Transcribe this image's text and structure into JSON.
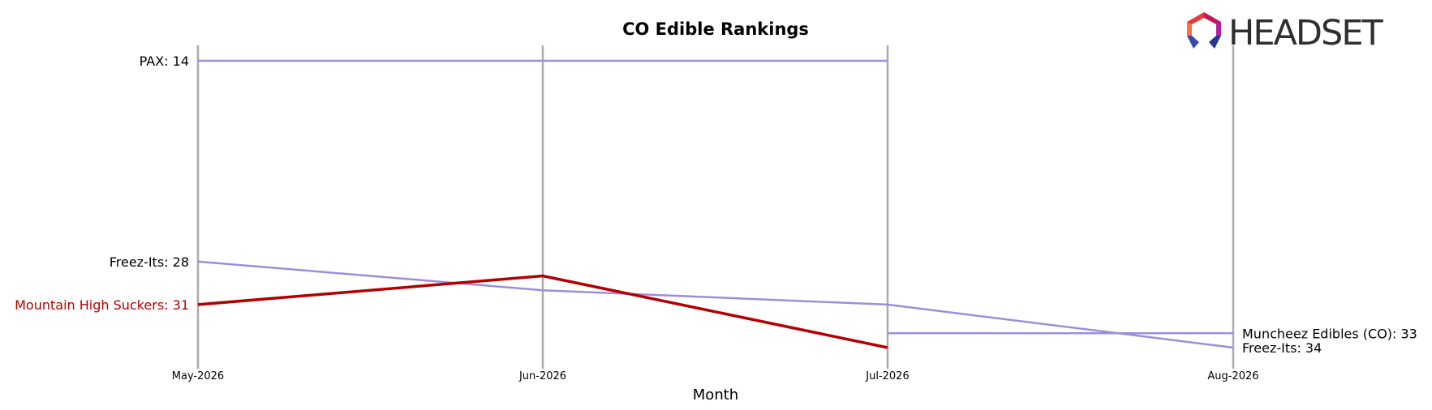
{
  "logo": {
    "text": "HEADSET"
  },
  "chart_data": {
    "type": "line",
    "title": "CO Edible Rankings",
    "xlabel": "Month",
    "ylabel": "",
    "categories": [
      "May-2026",
      "Jun-2026",
      "Jul-2026",
      "Aug-2026"
    ],
    "y_inverted": true,
    "grid": false,
    "series": [
      {
        "name": "PAX",
        "values": [
          14,
          14,
          14,
          null
        ],
        "color": "#9b8fdc",
        "highlight": false,
        "start_label": "PAX: 14",
        "end_label": ""
      },
      {
        "name": "Freez-Its",
        "values": [
          28,
          30,
          31,
          34
        ],
        "color": "#9b8fdc",
        "highlight": false,
        "start_label": "Freez-Its: 28",
        "end_label": "Freez-Its: 34"
      },
      {
        "name": "Muncheez Edibles (CO)",
        "values": [
          null,
          null,
          33,
          33
        ],
        "color": "#9b8fdc",
        "highlight": false,
        "start_label": "",
        "end_label": "Muncheez Edibles (CO): 33"
      },
      {
        "name": "Mountain High Suckers",
        "values": [
          31,
          29,
          34,
          null
        ],
        "color": "#b30000",
        "highlight": true,
        "start_label": "Mountain High Suckers: 31",
        "end_label": ""
      }
    ]
  }
}
